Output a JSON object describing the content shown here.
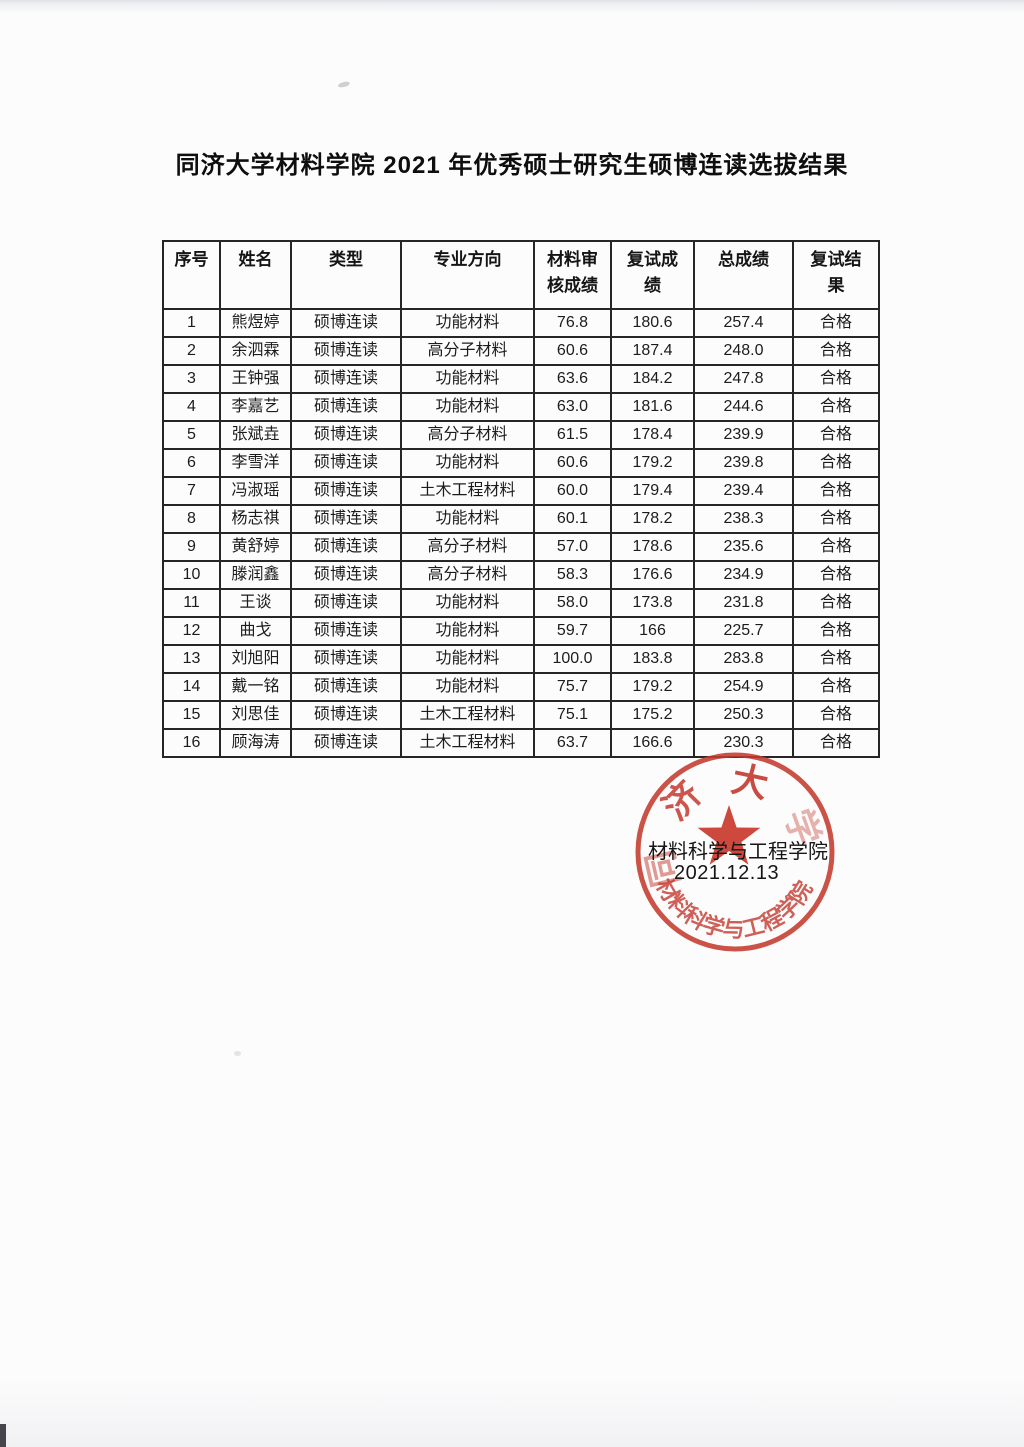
{
  "document": {
    "title": "同济大学材料学院 2021 年优秀硕士研究生硕博连读选拔结果"
  },
  "table": {
    "headers": [
      "序号",
      "姓名",
      "类型",
      "专业方向",
      "材料审\n核成绩",
      "复试成\n绩",
      "总成绩",
      "复试结\n果"
    ],
    "rows": [
      {
        "no": "1",
        "name": "熊煜婷",
        "type": "硕博连读",
        "major": "功能材料",
        "material_score": "76.8",
        "interview_score": "180.6",
        "total_score": "257.4",
        "result": "合格"
      },
      {
        "no": "2",
        "name": "余泗霖",
        "type": "硕博连读",
        "major": "高分子材料",
        "material_score": "60.6",
        "interview_score": "187.4",
        "total_score": "248.0",
        "result": "合格"
      },
      {
        "no": "3",
        "name": "王钟强",
        "type": "硕博连读",
        "major": "功能材料",
        "material_score": "63.6",
        "interview_score": "184.2",
        "total_score": "247.8",
        "result": "合格"
      },
      {
        "no": "4",
        "name": "李嘉艺",
        "type": "硕博连读",
        "major": "功能材料",
        "material_score": "63.0",
        "interview_score": "181.6",
        "total_score": "244.6",
        "result": "合格"
      },
      {
        "no": "5",
        "name": "张斌垚",
        "type": "硕博连读",
        "major": "高分子材料",
        "material_score": "61.5",
        "interview_score": "178.4",
        "total_score": "239.9",
        "result": "合格"
      },
      {
        "no": "6",
        "name": "李雪洋",
        "type": "硕博连读",
        "major": "功能材料",
        "material_score": "60.6",
        "interview_score": "179.2",
        "total_score": "239.8",
        "result": "合格"
      },
      {
        "no": "7",
        "name": "冯淑瑶",
        "type": "硕博连读",
        "major": "土木工程材料",
        "material_score": "60.0",
        "interview_score": "179.4",
        "total_score": "239.4",
        "result": "合格"
      },
      {
        "no": "8",
        "name": "杨志祺",
        "type": "硕博连读",
        "major": "功能材料",
        "material_score": "60.1",
        "interview_score": "178.2",
        "total_score": "238.3",
        "result": "合格"
      },
      {
        "no": "9",
        "name": "黄舒婷",
        "type": "硕博连读",
        "major": "高分子材料",
        "material_score": "57.0",
        "interview_score": "178.6",
        "total_score": "235.6",
        "result": "合格"
      },
      {
        "no": "10",
        "name": "滕润鑫",
        "type": "硕博连读",
        "major": "高分子材料",
        "material_score": "58.3",
        "interview_score": "176.6",
        "total_score": "234.9",
        "result": "合格"
      },
      {
        "no": "11",
        "name": "王谈",
        "type": "硕博连读",
        "major": "功能材料",
        "material_score": "58.0",
        "interview_score": "173.8",
        "total_score": "231.8",
        "result": "合格"
      },
      {
        "no": "12",
        "name": "曲戈",
        "type": "硕博连读",
        "major": "功能材料",
        "material_score": "59.7",
        "interview_score": "166",
        "total_score": "225.7",
        "result": "合格"
      },
      {
        "no": "13",
        "name": "刘旭阳",
        "type": "硕博连读",
        "major": "功能材料",
        "material_score": "100.0",
        "interview_score": "183.8",
        "total_score": "283.8",
        "result": "合格"
      },
      {
        "no": "14",
        "name": "戴一铭",
        "type": "硕博连读",
        "major": "功能材料",
        "material_score": "75.7",
        "interview_score": "179.2",
        "total_score": "254.9",
        "result": "合格"
      },
      {
        "no": "15",
        "name": "刘思佳",
        "type": "硕博连读",
        "major": "土木工程材料",
        "material_score": "75.1",
        "interview_score": "175.2",
        "total_score": "250.3",
        "result": "合格"
      },
      {
        "no": "16",
        "name": "顾海涛",
        "type": "硕博连读",
        "major": "土木工程材料",
        "material_score": "63.7",
        "interview_score": "166.6",
        "total_score": "230.3",
        "result": "合格"
      }
    ]
  },
  "stamp": {
    "top_chars": [
      "同",
      "济",
      "大",
      "学"
    ],
    "ring_text_bottom": "材料科学与工程学院",
    "overlay_line1": "材料科学与工程学院",
    "overlay_line2": "2021.12.13",
    "seal_color": "#c43a2e"
  }
}
